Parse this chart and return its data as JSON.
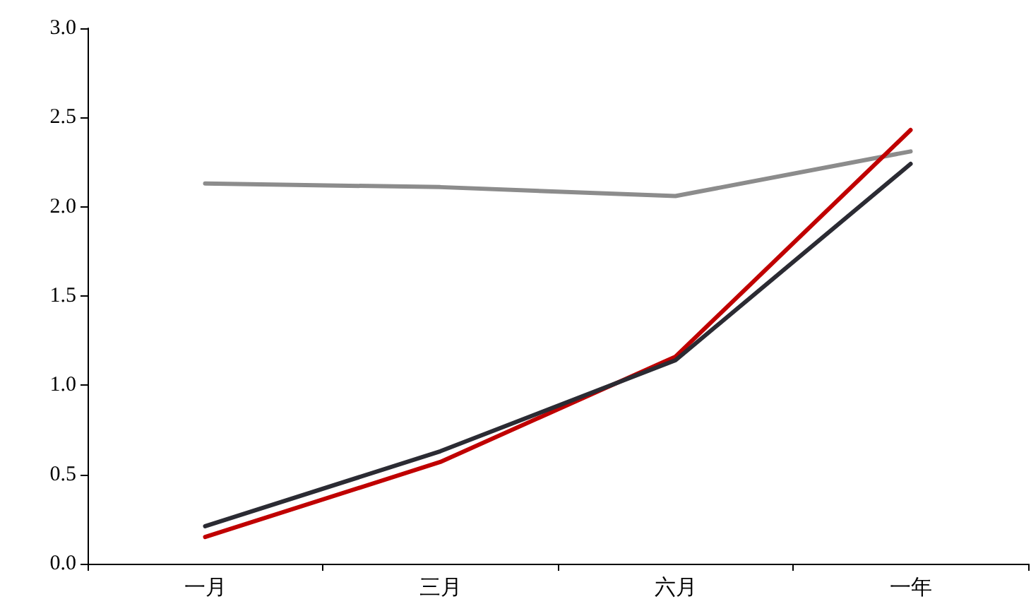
{
  "chart_data": {
    "type": "line",
    "categories": [
      "一月",
      "三月",
      "六月",
      "一年"
    ],
    "series": [
      {
        "color": "#8c8c8c",
        "values": [
          2.13,
          2.11,
          2.06,
          2.31
        ]
      },
      {
        "color": "#c00000",
        "values": [
          0.15,
          0.57,
          1.16,
          2.43
        ]
      },
      {
        "color": "#2b2b33",
        "values": [
          0.21,
          0.63,
          1.14,
          2.24
        ]
      }
    ],
    "ylim": [
      0,
      3
    ],
    "yticks": [
      {
        "value": 0,
        "label": "0.0"
      },
      {
        "value": 0.5,
        "label": "0.5"
      },
      {
        "value": 1,
        "label": "1.0"
      },
      {
        "value": 1.5,
        "label": "1.5"
      },
      {
        "value": 2,
        "label": "2.0"
      },
      {
        "value": 2.5,
        "label": "2.5"
      },
      {
        "value": 3,
        "label": "3.0"
      }
    ],
    "grid": false,
    "marker": "none",
    "line_style": "solid"
  }
}
